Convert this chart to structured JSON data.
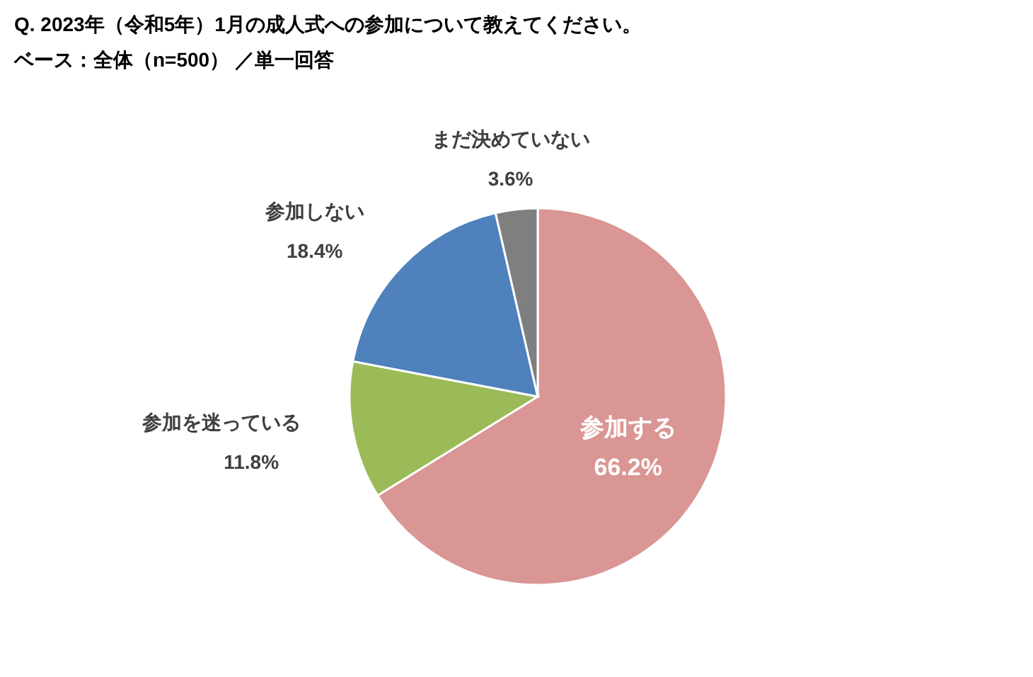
{
  "chart_data": {
    "type": "pie",
    "title": "Q. 2023年（令和5年）1月の成人式への参加について教えてください。",
    "subtitle": "ベース：全体（n=500） ／単一回答",
    "categories": [
      "参加する",
      "参加を迷っている",
      "参加しない",
      "まだ決めていない"
    ],
    "values": [
      66.2,
      11.8,
      18.4,
      3.6
    ],
    "colors": [
      "#d99694",
      "#9bbb59",
      "#4f81bd",
      "#7f7f7f"
    ],
    "value_labels": [
      "66.2%",
      "11.8%",
      "18.4%",
      "3.6%"
    ],
    "legend": false
  }
}
